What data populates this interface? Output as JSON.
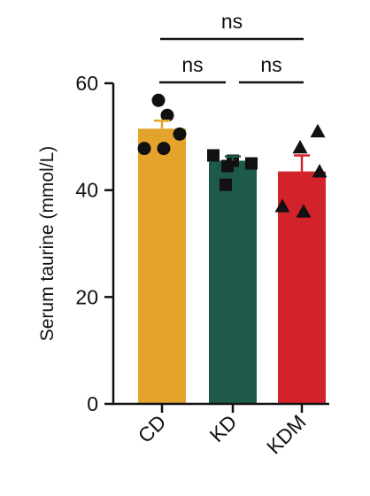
{
  "chart_data": {
    "type": "bar",
    "ylabel": "Serum taurine (mmol/L)",
    "ylim": [
      0,
      60
    ],
    "yticks": [
      0,
      20,
      40,
      60
    ],
    "grid": false,
    "categories": [
      "CD",
      "KD",
      "KDM"
    ],
    "bars": [
      {
        "category": "CD",
        "mean": 51.5,
        "sem": 1.5,
        "color": "#E4A42C",
        "marker": "circle",
        "points": [
          56.8,
          54.0,
          50.5,
          47.8,
          47.8
        ]
      },
      {
        "category": "KD",
        "mean": 45.5,
        "sem": 0.8,
        "color": "#1E5A4B",
        "marker": "square",
        "points": [
          46.5,
          45.5,
          45.0,
          44.5,
          41.0
        ]
      },
      {
        "category": "KDM",
        "mean": 43.5,
        "sem": 3.0,
        "color": "#D2232A",
        "marker": "triangle",
        "points": [
          51.0,
          48.0,
          43.5,
          37.0,
          36.0
        ]
      }
    ],
    "significance": [
      {
        "from": 0,
        "to": 2,
        "label": "ns"
      },
      {
        "from": 0,
        "to": 1,
        "label": "ns"
      },
      {
        "from": 1,
        "to": 2,
        "label": "ns"
      }
    ]
  }
}
